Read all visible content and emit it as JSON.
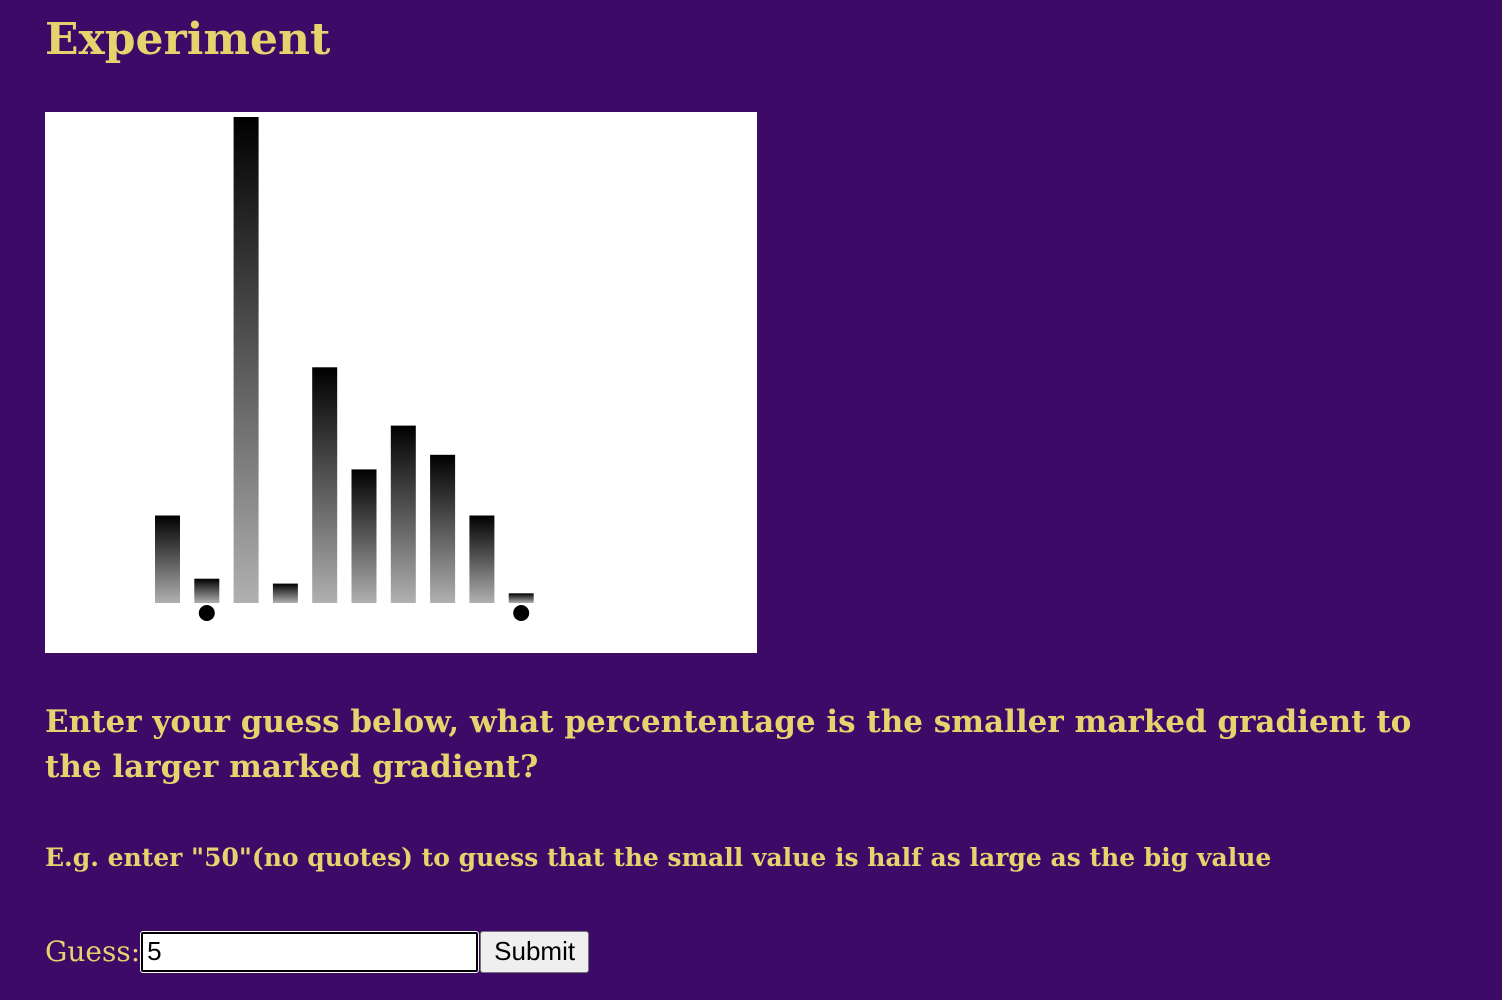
{
  "header": {
    "title": "Experiment"
  },
  "chart_data": {
    "type": "bar",
    "values": [
      18,
      5,
      100,
      4,
      48.5,
      27.5,
      36.5,
      30.5,
      18,
      2
    ],
    "marked_bar_indices": [
      1,
      9
    ],
    "ylim": [
      0,
      100
    ],
    "bar_gradient": {
      "top": "#000000",
      "bottom": "#b0b0b0"
    }
  },
  "instructions": {
    "question": "Enter your guess below, what percententage is the smaller marked gradient to the larger marked gradient?",
    "example": "E.g. enter \"50\"(no quotes) to guess that the small value is half as large as the big value"
  },
  "form": {
    "guess_label": "Guess:",
    "guess_value": "5",
    "submit_label": "Submit"
  },
  "colors": {
    "background": "#3d0a68",
    "text": "#e3d46e"
  }
}
